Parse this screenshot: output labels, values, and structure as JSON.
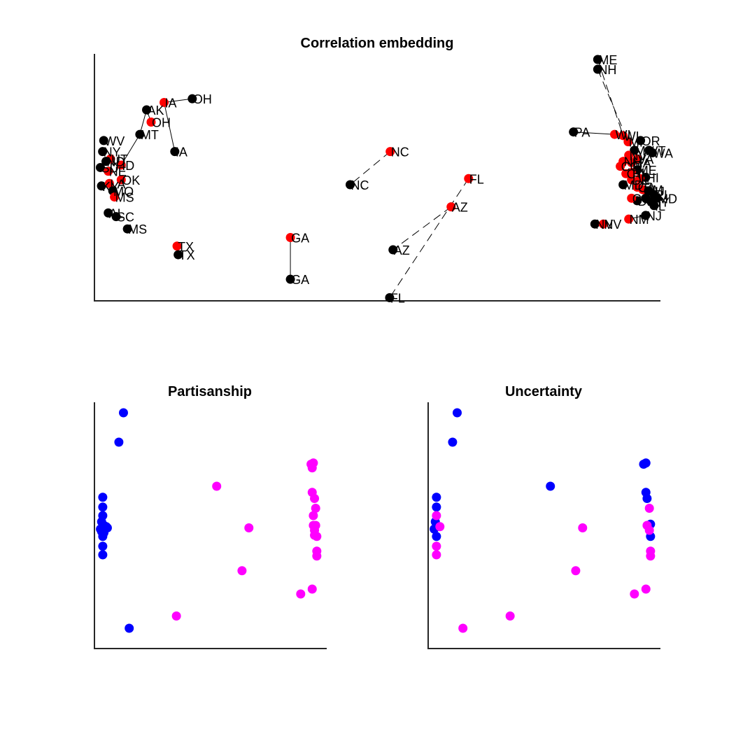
{
  "chart_data": [
    {
      "type": "scatter",
      "title": "Correlation embedding",
      "xlim": [
        0,
        100
      ],
      "ylim": [
        0,
        100
      ],
      "grid": false,
      "legend": "none",
      "colors": {
        "first": "#000000",
        "second": "#ff0000"
      },
      "points": [
        {
          "label": "ME",
          "x": 89.0,
          "y": 98.0,
          "color": "first"
        },
        {
          "label": "NH",
          "x": 89.0,
          "y": 94.0,
          "color": "first"
        },
        {
          "label": "OH",
          "x": 17.1,
          "y": 82.0,
          "color": "first"
        },
        {
          "label": "IA",
          "x": 12.1,
          "y": 80.5,
          "color": "second"
        },
        {
          "label": "AK",
          "x": 9.0,
          "y": 77.5,
          "color": "first"
        },
        {
          "label": "OH",
          "x": 9.8,
          "y": 72.5,
          "color": "second"
        },
        {
          "label": "MT",
          "x": 7.8,
          "y": 67.5,
          "color": "first"
        },
        {
          "label": "IA",
          "x": 14.0,
          "y": 60.5,
          "color": "first"
        },
        {
          "label": "WV",
          "x": 1.4,
          "y": 65.0,
          "color": "first"
        },
        {
          "label": "NY",
          "x": 1.2,
          "y": 60.5,
          "color": "first"
        },
        {
          "label": "UT",
          "x": 2.6,
          "y": 57.5,
          "color": "second"
        },
        {
          "label": "ND",
          "x": 1.8,
          "y": 56.5,
          "color": "first"
        },
        {
          "label": "SD",
          "x": 0.8,
          "y": 54.0,
          "color": "first"
        },
        {
          "label": "ID",
          "x": 4.5,
          "y": 55.0,
          "color": "second"
        },
        {
          "label": "NE",
          "x": 2.2,
          "y": 52.5,
          "color": "second"
        },
        {
          "label": "OK",
          "x": 4.5,
          "y": 49.0,
          "color": "second"
        },
        {
          "label": "KY",
          "x": 1.0,
          "y": 46.5,
          "color": "first"
        },
        {
          "label": "LA",
          "x": 2.4,
          "y": 47.5,
          "color": "second"
        },
        {
          "label": "MO",
          "x": 3.0,
          "y": 44.5,
          "color": "first"
        },
        {
          "label": "MS",
          "x": 3.3,
          "y": 42.0,
          "color": "second"
        },
        {
          "label": "AL",
          "x": 2.2,
          "y": 35.5,
          "color": "first"
        },
        {
          "label": "SC",
          "x": 3.6,
          "y": 34.0,
          "color": "first"
        },
        {
          "label": "MS",
          "x": 5.6,
          "y": 29.0,
          "color": "first"
        },
        {
          "label": "TX",
          "x": 14.4,
          "y": 22.0,
          "color": "second"
        },
        {
          "label": "TX",
          "x": 14.6,
          "y": 18.5,
          "color": "first"
        },
        {
          "label": "GA",
          "x": 34.5,
          "y": 25.5,
          "color": "second"
        },
        {
          "label": "GA",
          "x": 34.5,
          "y": 8.5,
          "color": "first"
        },
        {
          "label": "NC",
          "x": 52.2,
          "y": 60.5,
          "color": "second"
        },
        {
          "label": "NC",
          "x": 45.1,
          "y": 47.0,
          "color": "first"
        },
        {
          "label": "FL",
          "x": 66.1,
          "y": 49.5,
          "color": "second"
        },
        {
          "label": "AZ",
          "x": 63.0,
          "y": 38.0,
          "color": "second"
        },
        {
          "label": "AZ",
          "x": 52.7,
          "y": 20.5,
          "color": "first"
        },
        {
          "label": "FL",
          "x": 52.1,
          "y": 1.0,
          "color": "first"
        },
        {
          "label": "PA",
          "x": 84.7,
          "y": 68.5,
          "color": "first"
        },
        {
          "label": "WI",
          "x": 93.5,
          "y": 67.0,
          "color": "second"
        },
        {
          "label": "WI",
          "x": 92.0,
          "y": 67.5,
          "color": "second"
        },
        {
          "label": "MI",
          "x": 94.4,
          "y": 64.5,
          "color": "second"
        },
        {
          "label": "OR",
          "x": 96.6,
          "y": 65.0,
          "color": "first"
        },
        {
          "label": "VT",
          "x": 98.1,
          "y": 61.0,
          "color": "first"
        },
        {
          "label": "WA",
          "x": 98.7,
          "y": 60.0,
          "color": "first"
        },
        {
          "label": "MN",
          "x": 95.5,
          "y": 61.0,
          "color": "first"
        },
        {
          "label": "NV",
          "x": 94.5,
          "y": 59.0,
          "color": "second"
        },
        {
          "label": "VA",
          "x": 96.0,
          "y": 57.5,
          "color": "second"
        },
        {
          "label": "MA",
          "x": 95.0,
          "y": 56.0,
          "color": "second"
        },
        {
          "label": "NH",
          "x": 93.5,
          "y": 56.5,
          "color": "second"
        },
        {
          "label": "CO",
          "x": 93.0,
          "y": 54.5,
          "color": "second"
        },
        {
          "label": "ME",
          "x": 96.0,
          "y": 53.0,
          "color": "first"
        },
        {
          "label": "RI",
          "x": 95.0,
          "y": 52.0,
          "color": "second"
        },
        {
          "label": "CT",
          "x": 94.0,
          "y": 51.5,
          "color": "second"
        },
        {
          "label": "HI",
          "x": 97.5,
          "y": 50.0,
          "color": "first"
        },
        {
          "label": "IL",
          "x": 96.5,
          "y": 49.5,
          "color": "second"
        },
        {
          "label": "DE",
          "x": 95.0,
          "y": 49.0,
          "color": "second"
        },
        {
          "label": "MD",
          "x": 93.5,
          "y": 47.0,
          "color": "first"
        },
        {
          "label": "CA",
          "x": 96.0,
          "y": 46.0,
          "color": "second"
        },
        {
          "label": "NM",
          "x": 97.0,
          "y": 45.0,
          "color": "second"
        },
        {
          "label": "NJ",
          "x": 98.0,
          "y": 44.5,
          "color": "first"
        },
        {
          "label": "RI",
          "x": 99.0,
          "y": 43.0,
          "color": "first"
        },
        {
          "label": "CA",
          "x": 97.5,
          "y": 41.5,
          "color": "first"
        },
        {
          "label": "NY",
          "x": 98.5,
          "y": 40.0,
          "color": "first"
        },
        {
          "label": "DE",
          "x": 96.0,
          "y": 40.5,
          "color": "first"
        },
        {
          "label": "CO",
          "x": 95.0,
          "y": 41.5,
          "color": "second"
        },
        {
          "label": "MD",
          "x": 99.5,
          "y": 41.5,
          "color": "first"
        },
        {
          "label": "IL",
          "x": 99.0,
          "y": 38.5,
          "color": "first"
        },
        {
          "label": "NJ",
          "x": 97.5,
          "y": 34.5,
          "color": "first"
        },
        {
          "label": "NM",
          "x": 94.5,
          "y": 33.0,
          "color": "second"
        },
        {
          "label": "NV",
          "x": 88.5,
          "y": 31.0,
          "color": "first"
        },
        {
          "label": "NV",
          "x": 90.0,
          "y": 31.0,
          "color": "second"
        }
      ],
      "links": [
        {
          "x1": 17.1,
          "y1": 82.0,
          "x2": 12.1,
          "y2": 80.5,
          "style": "solid"
        },
        {
          "x1": 12.1,
          "y1": 80.5,
          "x2": 14.0,
          "y2": 60.5,
          "style": "solid"
        },
        {
          "x1": 9.0,
          "y1": 77.5,
          "x2": 9.8,
          "y2": 72.5,
          "style": "solid"
        },
        {
          "x1": 9.0,
          "y1": 77.5,
          "x2": 7.8,
          "y2": 67.5,
          "style": "solid"
        },
        {
          "x1": 7.8,
          "y1": 67.5,
          "x2": 4.5,
          "y2": 55.0,
          "style": "solid"
        },
        {
          "x1": 14.4,
          "y1": 22.0,
          "x2": 14.6,
          "y2": 18.5,
          "style": "solid"
        },
        {
          "x1": 34.5,
          "y1": 25.5,
          "x2": 34.5,
          "y2": 8.5,
          "style": "solid"
        },
        {
          "x1": 52.2,
          "y1": 60.5,
          "x2": 45.1,
          "y2": 47.0,
          "style": "dashed"
        },
        {
          "x1": 63.0,
          "y1": 38.0,
          "x2": 52.7,
          "y2": 20.5,
          "style": "dashed"
        },
        {
          "x1": 66.1,
          "y1": 49.5,
          "x2": 52.1,
          "y2": 1.0,
          "style": "dashed"
        },
        {
          "x1": 89.0,
          "y1": 98.0,
          "x2": 93.5,
          "y2": 67.0,
          "style": "dashed"
        },
        {
          "x1": 89.0,
          "y1": 94.0,
          "x2": 94.4,
          "y2": 64.5,
          "style": "dashed"
        },
        {
          "x1": 84.7,
          "y1": 68.5,
          "x2": 92.0,
          "y2": 67.5,
          "style": "solid"
        },
        {
          "x1": 94.5,
          "y1": 33.0,
          "x2": 97.5,
          "y2": 34.5,
          "style": "solid"
        },
        {
          "x1": 88.5,
          "y1": 31.0,
          "x2": 90.0,
          "y2": 31.0,
          "style": "solid"
        }
      ]
    },
    {
      "type": "scatter",
      "title": "Partisanship",
      "xlim": [
        0,
        100
      ],
      "ylim": [
        0,
        100
      ],
      "grid": false,
      "legend": "none",
      "colors": {
        "first": "#0000ff",
        "second": "#ff00ff"
      },
      "points": [
        {
          "x": 12.0,
          "y": 96.0,
          "color": "first"
        },
        {
          "x": 10.0,
          "y": 84.0,
          "color": "first"
        },
        {
          "x": 3.0,
          "y": 61.5,
          "color": "first"
        },
        {
          "x": 3.0,
          "y": 57.5,
          "color": "first"
        },
        {
          "x": 3.0,
          "y": 54.0,
          "color": "first"
        },
        {
          "x": 2.5,
          "y": 51.5,
          "color": "first"
        },
        {
          "x": 3.5,
          "y": 50.0,
          "color": "first"
        },
        {
          "x": 4.5,
          "y": 49.5,
          "color": "first"
        },
        {
          "x": 5.0,
          "y": 49.0,
          "color": "first"
        },
        {
          "x": 2.0,
          "y": 48.5,
          "color": "first"
        },
        {
          "x": 3.5,
          "y": 47.0,
          "color": "first"
        },
        {
          "x": 3.0,
          "y": 45.5,
          "color": "first"
        },
        {
          "x": 2.5,
          "y": 47.5,
          "color": "first"
        },
        {
          "x": 3.0,
          "y": 41.5,
          "color": "first"
        },
        {
          "x": 3.0,
          "y": 38.0,
          "color": "first"
        },
        {
          "x": 14.5,
          "y": 8.0,
          "color": "first"
        },
        {
          "x": 52.5,
          "y": 66.0,
          "color": "second"
        },
        {
          "x": 66.5,
          "y": 49.0,
          "color": "second"
        },
        {
          "x": 63.5,
          "y": 31.5,
          "color": "second"
        },
        {
          "x": 35.0,
          "y": 13.0,
          "color": "second"
        },
        {
          "x": 93.5,
          "y": 75.0,
          "color": "second"
        },
        {
          "x": 94.5,
          "y": 75.5,
          "color": "second"
        },
        {
          "x": 94.0,
          "y": 73.5,
          "color": "second"
        },
        {
          "x": 94.0,
          "y": 63.5,
          "color": "second"
        },
        {
          "x": 95.0,
          "y": 61.0,
          "color": "second"
        },
        {
          "x": 95.5,
          "y": 57.0,
          "color": "second"
        },
        {
          "x": 94.5,
          "y": 54.0,
          "color": "second"
        },
        {
          "x": 94.5,
          "y": 50.0,
          "color": "second"
        },
        {
          "x": 95.5,
          "y": 50.0,
          "color": "second"
        },
        {
          "x": 95.0,
          "y": 48.0,
          "color": "second"
        },
        {
          "x": 95.0,
          "y": 46.0,
          "color": "second"
        },
        {
          "x": 96.0,
          "y": 45.5,
          "color": "second"
        },
        {
          "x": 96.0,
          "y": 39.5,
          "color": "second"
        },
        {
          "x": 96.0,
          "y": 37.5,
          "color": "second"
        },
        {
          "x": 94.0,
          "y": 24.0,
          "color": "second"
        },
        {
          "x": 89.0,
          "y": 22.0,
          "color": "second"
        }
      ]
    },
    {
      "type": "scatter",
      "title": "Uncertainty",
      "xlim": [
        0,
        100
      ],
      "ylim": [
        0,
        100
      ],
      "grid": false,
      "legend": "none",
      "colors": {
        "first": "#0000ff",
        "second": "#ff00ff"
      },
      "points": [
        {
          "x": 12.0,
          "y": 96.0,
          "color": "first"
        },
        {
          "x": 10.0,
          "y": 84.0,
          "color": "first"
        },
        {
          "x": 3.0,
          "y": 61.5,
          "color": "first"
        },
        {
          "x": 3.0,
          "y": 57.5,
          "color": "first"
        },
        {
          "x": 2.5,
          "y": 51.5,
          "color": "first"
        },
        {
          "x": 2.0,
          "y": 48.5,
          "color": "first"
        },
        {
          "x": 3.0,
          "y": 45.5,
          "color": "first"
        },
        {
          "x": 52.5,
          "y": 66.0,
          "color": "first"
        },
        {
          "x": 93.0,
          "y": 75.0,
          "color": "first"
        },
        {
          "x": 94.0,
          "y": 75.5,
          "color": "first"
        },
        {
          "x": 94.0,
          "y": 63.5,
          "color": "first"
        },
        {
          "x": 94.5,
          "y": 61.0,
          "color": "first"
        },
        {
          "x": 96.0,
          "y": 50.5,
          "color": "first"
        },
        {
          "x": 96.0,
          "y": 45.5,
          "color": "first"
        },
        {
          "x": 3.0,
          "y": 54.0,
          "color": "second"
        },
        {
          "x": 4.5,
          "y": 49.5,
          "color": "second"
        },
        {
          "x": 3.0,
          "y": 41.5,
          "color": "second"
        },
        {
          "x": 3.0,
          "y": 38.0,
          "color": "second"
        },
        {
          "x": 14.5,
          "y": 8.0,
          "color": "second"
        },
        {
          "x": 35.0,
          "y": 13.0,
          "color": "second"
        },
        {
          "x": 66.5,
          "y": 49.0,
          "color": "second"
        },
        {
          "x": 63.5,
          "y": 31.5,
          "color": "second"
        },
        {
          "x": 95.5,
          "y": 57.0,
          "color": "second"
        },
        {
          "x": 94.5,
          "y": 50.0,
          "color": "second"
        },
        {
          "x": 95.5,
          "y": 48.0,
          "color": "second"
        },
        {
          "x": 96.0,
          "y": 39.5,
          "color": "second"
        },
        {
          "x": 96.0,
          "y": 37.5,
          "color": "second"
        },
        {
          "x": 94.0,
          "y": 24.0,
          "color": "second"
        },
        {
          "x": 89.0,
          "y": 22.0,
          "color": "second"
        }
      ]
    }
  ]
}
